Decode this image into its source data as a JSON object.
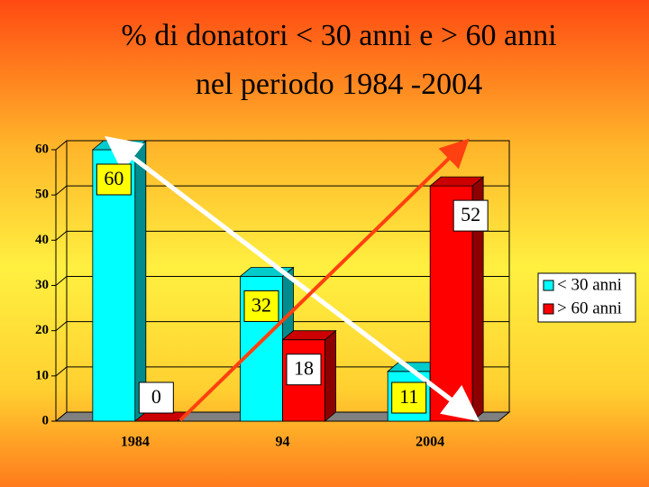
{
  "chart_data": {
    "type": "bar3d",
    "title": [
      "% di donatori < 30 anni e > 60 anni",
      "nel periodo 1984 -2004"
    ],
    "categories": [
      "1984",
      "94",
      "2004"
    ],
    "series": [
      {
        "name": "< 30 anni",
        "color": "#00ffff",
        "label_fill": "#ffff00",
        "values": [
          60,
          32,
          11
        ]
      },
      {
        "name": "> 60 anni",
        "color": "#ff0000",
        "label_fill": "#ffffff",
        "values": [
          0,
          18,
          52
        ]
      }
    ],
    "ylim": [
      0,
      60
    ],
    "yticks": [
      0,
      10,
      20,
      30,
      40,
      50,
      60
    ],
    "grid": true
  }
}
